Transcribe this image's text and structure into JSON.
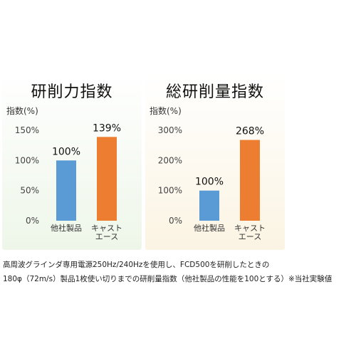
{
  "colors": {
    "blue": "#5b9bd5",
    "orange": "#ed7d31",
    "left_bg": "#eef6e9",
    "right_bg": "#fbf4e3"
  },
  "chart_data": [
    {
      "type": "bar",
      "title": "研削力指数",
      "ylabel": "指数(%)",
      "ylim": [
        0,
        150
      ],
      "yticks": [
        0,
        50,
        100,
        150
      ],
      "ytick_labels": [
        "0%",
        "50%",
        "100%",
        "150%"
      ],
      "categories": [
        [
          "他社製品"
        ],
        [
          "キャスト",
          "エース"
        ]
      ],
      "values": [
        100,
        139
      ],
      "value_labels": [
        "100%",
        "139%"
      ],
      "bar_colors": [
        "#5b9bd5",
        "#ed7d31"
      ],
      "grid": false
    },
    {
      "type": "bar",
      "title": "総研削量指数",
      "ylabel": "指数(%)",
      "ylim": [
        0,
        300
      ],
      "yticks": [
        0,
        100,
        200,
        300
      ],
      "ytick_labels": [
        "0%",
        "100%",
        "200%",
        "300%"
      ],
      "categories": [
        [
          "他社製品"
        ],
        [
          "キャスト",
          "エース"
        ]
      ],
      "values": [
        100,
        268
      ],
      "value_labels": [
        "100%",
        "268%"
      ],
      "bar_colors": [
        "#5b9bd5",
        "#ed7d31"
      ],
      "grid": false
    }
  ],
  "footnote": {
    "line1": "高周波グラインダ専用電源250Hz/240Hzを使用し、FCD500を研削したときの",
    "line2": "180φ（72m/s）製品1枚使い切りまでの研削量指数（他社製品の性能を100とする）※当社実験値"
  }
}
